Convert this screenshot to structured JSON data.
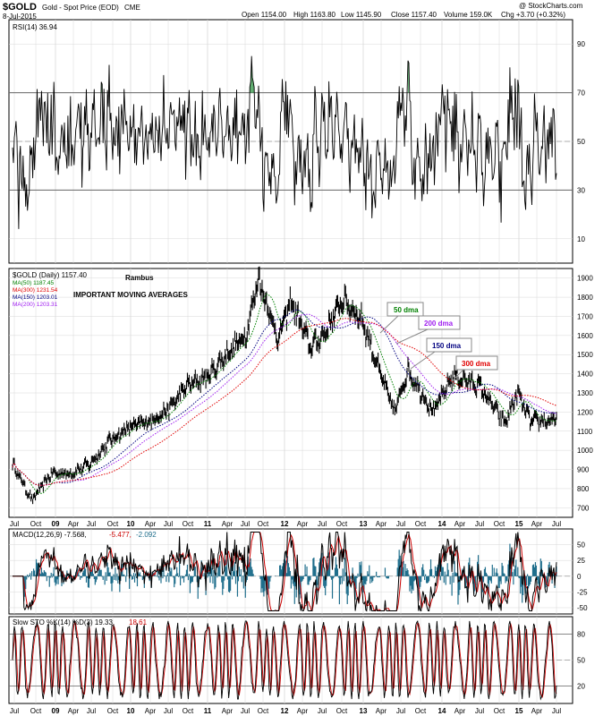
{
  "header": {
    "symbol": "$GOLD",
    "name": "Gold - Spot Price (EOD)",
    "exchange": "CME",
    "date": "8-Jul-2015",
    "open": "Open 1154.00",
    "high": "High 1163.80",
    "low": "Low 1145.90",
    "close": "Close 1157.40",
    "volume": "Volume 159.0K",
    "chg": "Chg +3.70 (+0.32%)",
    "watermark": "@ StockCharts.com"
  },
  "colors": {
    "price": "#000000",
    "ma50": "#008000",
    "ma300": "#e00000",
    "ma150": "#000080",
    "ma200": "#a020f0",
    "macd_signal": "#cc0000",
    "macd_hist": "#1f6e8c",
    "grid": "#d8d8d8",
    "rsi_fill": "#3c9c50"
  },
  "x_labels": [
    "Jul",
    "Oct",
    "09",
    "Apr",
    "Jul",
    "Oct",
    "10",
    "Apr",
    "Jul",
    "Oct",
    "11",
    "Apr",
    "Jul",
    "Oct",
    "12",
    "Apr",
    "Jul",
    "Oct",
    "13",
    "Apr",
    "Jul",
    "Oct",
    "14",
    "Apr",
    "Jul",
    "Oct",
    "15",
    "Apr",
    "Jul"
  ],
  "chart_data": [
    {
      "type": "line",
      "panel": "rsi",
      "legend": "RSI(14) 36.94",
      "ylim": [
        0,
        100
      ],
      "yticks": [
        10,
        30,
        50,
        70,
        90
      ],
      "reference_lines": [
        30,
        50,
        70
      ],
      "last_value": 36.94
    },
    {
      "type": "line",
      "panel": "price",
      "legend_title": "$GOLD (Daily) 1157.40",
      "annotations": [
        "Rambus",
        "IMPORTANT MOVING AVERAGES",
        "50 dma",
        "200 dma",
        "150 dma",
        "300 dma"
      ],
      "ylim": [
        650,
        1950
      ],
      "yticks": [
        700,
        800,
        900,
        1000,
        1100,
        1200,
        1300,
        1400,
        1500,
        1600,
        1700,
        1800,
        1900
      ],
      "series": [
        {
          "name": "MA(50) 1187.45",
          "label": "MA(50)",
          "value": 1187.45
        },
        {
          "name": "MA(300) 1231.54",
          "label": "MA(300)",
          "value": 1231.54
        },
        {
          "name": "MA(150) 1203.01",
          "label": "MA(150)",
          "value": 1203.01
        },
        {
          "name": "MA(200) 1203.31",
          "label": "MA(200)",
          "value": 1203.31
        }
      ],
      "price_keypoints": [
        [
          "Jul 08",
          930
        ],
        [
          "Oct 08",
          740
        ],
        [
          "Jan 09",
          880
        ],
        [
          "Apr 09",
          880
        ],
        [
          "Jul 09",
          930
        ],
        [
          "Oct 09",
          1050
        ],
        [
          "Jan 10",
          1120
        ],
        [
          "Apr 10",
          1150
        ],
        [
          "Jul 10",
          1210
        ],
        [
          "Oct 10",
          1340
        ],
        [
          "Jan 11",
          1380
        ],
        [
          "Apr 11",
          1500
        ],
        [
          "Jul 11",
          1600
        ],
        [
          "Sep 11",
          1900
        ],
        [
          "Dec 11",
          1580
        ],
        [
          "Feb 12",
          1780
        ],
        [
          "May 12",
          1540
        ],
        [
          "Jul 12",
          1600
        ],
        [
          "Oct 12",
          1790
        ],
        [
          "Jan 13",
          1680
        ],
        [
          "Apr 13",
          1380
        ],
        [
          "Jun 13",
          1200
        ],
        [
          "Aug 13",
          1420
        ],
        [
          "Dec 13",
          1200
        ],
        [
          "Mar 14",
          1390
        ],
        [
          "Jul 14",
          1340
        ],
        [
          "Nov 14",
          1140
        ],
        [
          "Jan 15",
          1300
        ],
        [
          "Mar 15",
          1150
        ],
        [
          "Jul 15",
          1157
        ]
      ]
    },
    {
      "type": "line",
      "panel": "macd",
      "legend_main": "MACD(12,26,9) -7.568,",
      "legend_signal": "-5.477,",
      "legend_hist": "-2.092",
      "ylim": [
        -60,
        75
      ],
      "yticks": [
        -50,
        -25,
        0,
        25,
        50
      ]
    },
    {
      "type": "line",
      "panel": "sto",
      "legend_main": "Slow STO %K(14) %D(3) 19.33,",
      "legend_d": "18.61",
      "ylim": [
        0,
        100
      ],
      "yticks": [
        20,
        50,
        80
      ],
      "reference_lines": [
        20,
        50,
        80
      ]
    }
  ]
}
